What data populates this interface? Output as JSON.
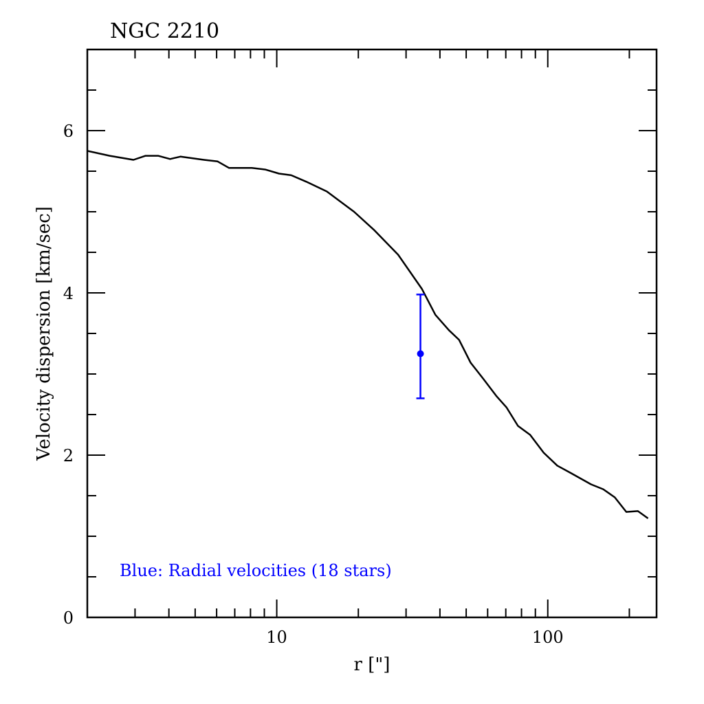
{
  "chart_data": {
    "type": "line",
    "title": "NGC 2210",
    "xlabel": "r [\"]",
    "ylabel": "Velocity dispersion [km/sec]",
    "xscale": "log",
    "xlim": [
      2.0,
      252
    ],
    "ylim": [
      0,
      7
    ],
    "x_ticks": [
      10,
      100
    ],
    "x_tick_labels": [
      "10",
      "100"
    ],
    "y_ticks": [
      0,
      2,
      4,
      6
    ],
    "y_tick_labels": [
      "0",
      "2",
      "4",
      "6"
    ],
    "y_minor_step": 0.5,
    "grid": false,
    "annotation": "Blue: Radial velocities (18 stars)",
    "colors": {
      "model": "#000000",
      "observed": "#0000ff"
    },
    "series": [
      {
        "name": "Model profile",
        "style": "line",
        "x": [
          2.0,
          2.42,
          2.96,
          3.28,
          3.65,
          4.04,
          4.41,
          5.39,
          6.05,
          6.67,
          8.09,
          9.07,
          10.19,
          11.31,
          12.85,
          15.3,
          19.29,
          22.94,
          28.05,
          34.31,
          38.49,
          43.18,
          47.09,
          51.91,
          57.54,
          64.57,
          70.38,
          77.63,
          86.1,
          96.6,
          108.4,
          121.6,
          144.4,
          160.2,
          176.7,
          194.9,
          215.0,
          234.4
        ],
        "y": [
          5.75,
          5.69,
          5.64,
          5.69,
          5.69,
          5.65,
          5.68,
          5.64,
          5.62,
          5.54,
          5.54,
          5.52,
          5.47,
          5.45,
          5.37,
          5.25,
          5.0,
          4.77,
          4.47,
          4.05,
          3.73,
          3.54,
          3.42,
          3.14,
          2.95,
          2.73,
          2.59,
          2.36,
          2.25,
          2.03,
          1.87,
          1.78,
          1.64,
          1.58,
          1.48,
          1.3,
          1.31,
          1.22
        ]
      },
      {
        "name": "Radial velocities (18 stars)",
        "style": "errorbar",
        "x": [
          33.9
        ],
        "y": [
          3.25
        ],
        "y_err_low": [
          2.7
        ],
        "y_err_high": [
          3.98
        ]
      }
    ]
  }
}
